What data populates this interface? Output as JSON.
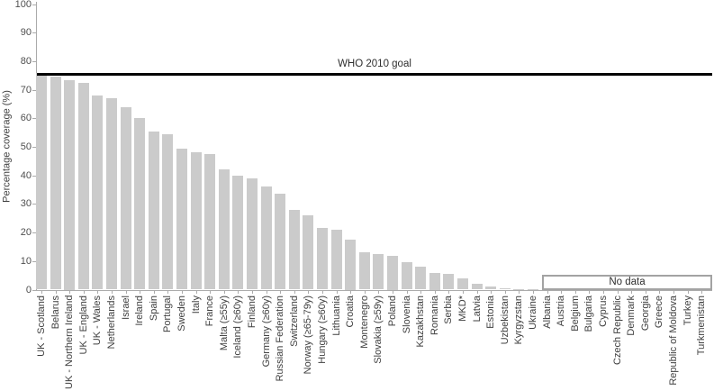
{
  "chart_data": {
    "type": "bar",
    "title": "",
    "xlabel": "",
    "ylabel": "Percentage coverage (%)",
    "ylim": [
      0,
      100
    ],
    "yticks": [
      0,
      10,
      20,
      30,
      40,
      50,
      60,
      70,
      80,
      90,
      100
    ],
    "grid": false,
    "legend": "none",
    "bar_color": "#cbcbcb",
    "axis_color": "#ababab",
    "reference_line": {
      "value": 75,
      "label": "WHO 2010 goal",
      "color": "#000000"
    },
    "no_data_box": {
      "label": "No data",
      "first_category": "Albania",
      "last_category": "Turkmenistan"
    },
    "categories": [
      "UK - Scotland",
      "Belarus",
      "UK - Northern Ireland",
      "UK - England",
      "UK - Wales",
      "Netherlands",
      "Israel",
      "Ireland",
      "Spain",
      "Portugal",
      "Sweden",
      "Italy",
      "France",
      "Malta (≥55y)",
      "Iceland (≥60y)",
      "Finland",
      "Germany (≥60y)",
      "Russian Federation",
      "Switzerland",
      "Norway (≥65-79y)",
      "Hungary (≥60y)",
      "Lithuania",
      "Croatia",
      "Montenegro",
      "Slovakia (≥59y)",
      "Poland",
      "Slovenia",
      "Kazakhstan",
      "Romania",
      "Serbia",
      "MKD*",
      "Latvia",
      "Estonia",
      "Uzbekistan",
      "Kyrgyzstan",
      "Ukraine",
      "Albania",
      "Austria",
      "Belgium",
      "Bulgaria",
      "Cyprus",
      "Czech Republic",
      "Denmark",
      "Georgia",
      "Greece",
      "Republic of Moldova",
      "Turkey",
      "Turkmenistan"
    ],
    "values": [
      76,
      74.5,
      73.5,
      72.5,
      68,
      67,
      64,
      60,
      55.5,
      54.5,
      49.5,
      48,
      47.5,
      42,
      40,
      39,
      36,
      33.5,
      28,
      26,
      21.5,
      21,
      17.5,
      13,
      12.5,
      12,
      9.5,
      8,
      6,
      5.5,
      4,
      2,
      1,
      0.5,
      0.2,
      0.1,
      null,
      null,
      null,
      null,
      null,
      null,
      null,
      null,
      null,
      null,
      null,
      null
    ]
  }
}
